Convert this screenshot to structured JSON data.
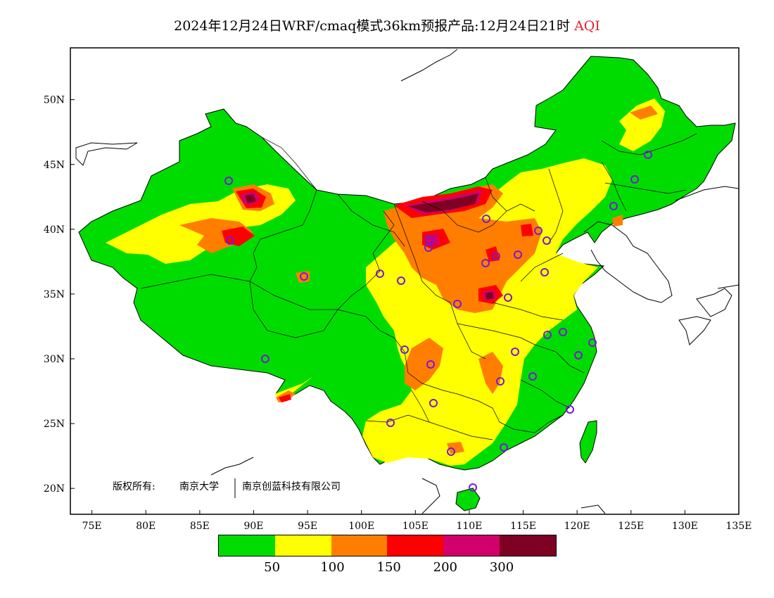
{
  "title": {
    "main": "2024年12月24日WRF/cmaq模式36km预报产品:12月24日21时",
    "variable": "AQI"
  },
  "axes": {
    "lon_range": [
      73,
      135
    ],
    "lat_range": [
      18,
      54
    ],
    "x_ticks": [
      "75E",
      "80E",
      "85E",
      "90E",
      "95E",
      "100E",
      "105E",
      "110E",
      "115E",
      "120E",
      "125E",
      "130E",
      "135E"
    ],
    "x_tick_values": [
      75,
      80,
      85,
      90,
      95,
      100,
      105,
      110,
      115,
      120,
      125,
      130,
      135
    ],
    "y_ticks": [
      "20N",
      "25N",
      "30N",
      "35N",
      "40N",
      "45N",
      "50N"
    ],
    "y_tick_values": [
      20,
      25,
      30,
      35,
      40,
      45,
      50
    ]
  },
  "copyright": {
    "prefix": "版权所有:",
    "org1": "南京大学",
    "org2": "南京创蓝科技有限公司"
  },
  "legend": {
    "colors": [
      "#00dc00",
      "#ffff00",
      "#ff7e00",
      "#ff0000",
      "#d1006a",
      "#7e0023"
    ],
    "labels": [
      "50",
      "100",
      "150",
      "200",
      "300"
    ]
  },
  "colors": {
    "good": "#00dc00",
    "moderate": "#ffff00",
    "usg": "#ff7e00",
    "unhealthy": "#ff0000",
    "very_unhealthy": "#d1006a",
    "hazardous": "#7e0023",
    "station": "#7a18d6"
  }
}
